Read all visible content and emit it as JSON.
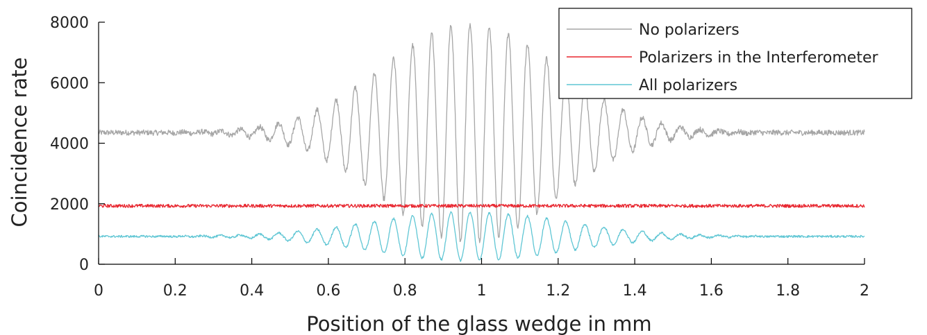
{
  "chart_data": {
    "type": "line",
    "xlabel": "Position of the glass wedge in mm",
    "ylabel": "Coincidence rate",
    "xlim": [
      0,
      2
    ],
    "ylim": [
      0,
      8000
    ],
    "x_ticks": [
      "0",
      "0.2",
      "0.4",
      "0.6",
      "0.8",
      "1",
      "1.2",
      "1.4",
      "1.6",
      "1.8",
      "2"
    ],
    "y_ticks": [
      "0",
      "2000",
      "4000",
      "6000",
      "8000"
    ],
    "grid": false,
    "legend_position": "top-right",
    "fringe_period_mm": 0.05,
    "envelope_center_mm": 0.97,
    "series": [
      {
        "name": "No polarizers",
        "color": "#a6a6a6",
        "baseline": 4350,
        "peak_amplitude": 3600,
        "envelope_width_mm": 0.32,
        "noise": 90,
        "x_sample": [
          0,
          0.2,
          0.4,
          0.6,
          0.7,
          0.8,
          0.9,
          0.95,
          1.0,
          1.1,
          1.2,
          1.3,
          1.4,
          1.6,
          1.8,
          2.0
        ],
        "y_sample": [
          4250,
          4400,
          5100,
          6300,
          7100,
          7700,
          7800,
          8000,
          7700,
          7700,
          7300,
          6600,
          5800,
          4800,
          4450,
          4500
        ]
      },
      {
        "name": "Polarizers in the Interferometer",
        "color": "#e8262f",
        "baseline": 1930,
        "peak_amplitude": 0,
        "envelope_width_mm": 0.32,
        "noise": 55,
        "x_sample": [
          0,
          0.5,
          1.0,
          1.5,
          2.0
        ],
        "y_sample": [
          1950,
          1900,
          1950,
          1920,
          2000
        ]
      },
      {
        "name": "All polarizers",
        "color": "#5fc6d4",
        "baseline": 920,
        "peak_amplitude": 800,
        "envelope_width_mm": 0.36,
        "noise": 35,
        "x_sample": [
          0,
          0.2,
          0.4,
          0.6,
          0.8,
          0.9,
          1.0,
          1.1,
          1.2,
          1.4,
          1.6,
          1.8,
          2.0
        ],
        "y_sample": [
          920,
          920,
          1050,
          1300,
          1600,
          1700,
          1750,
          1700,
          1600,
          1350,
          1100,
          950,
          920
        ]
      }
    ]
  }
}
